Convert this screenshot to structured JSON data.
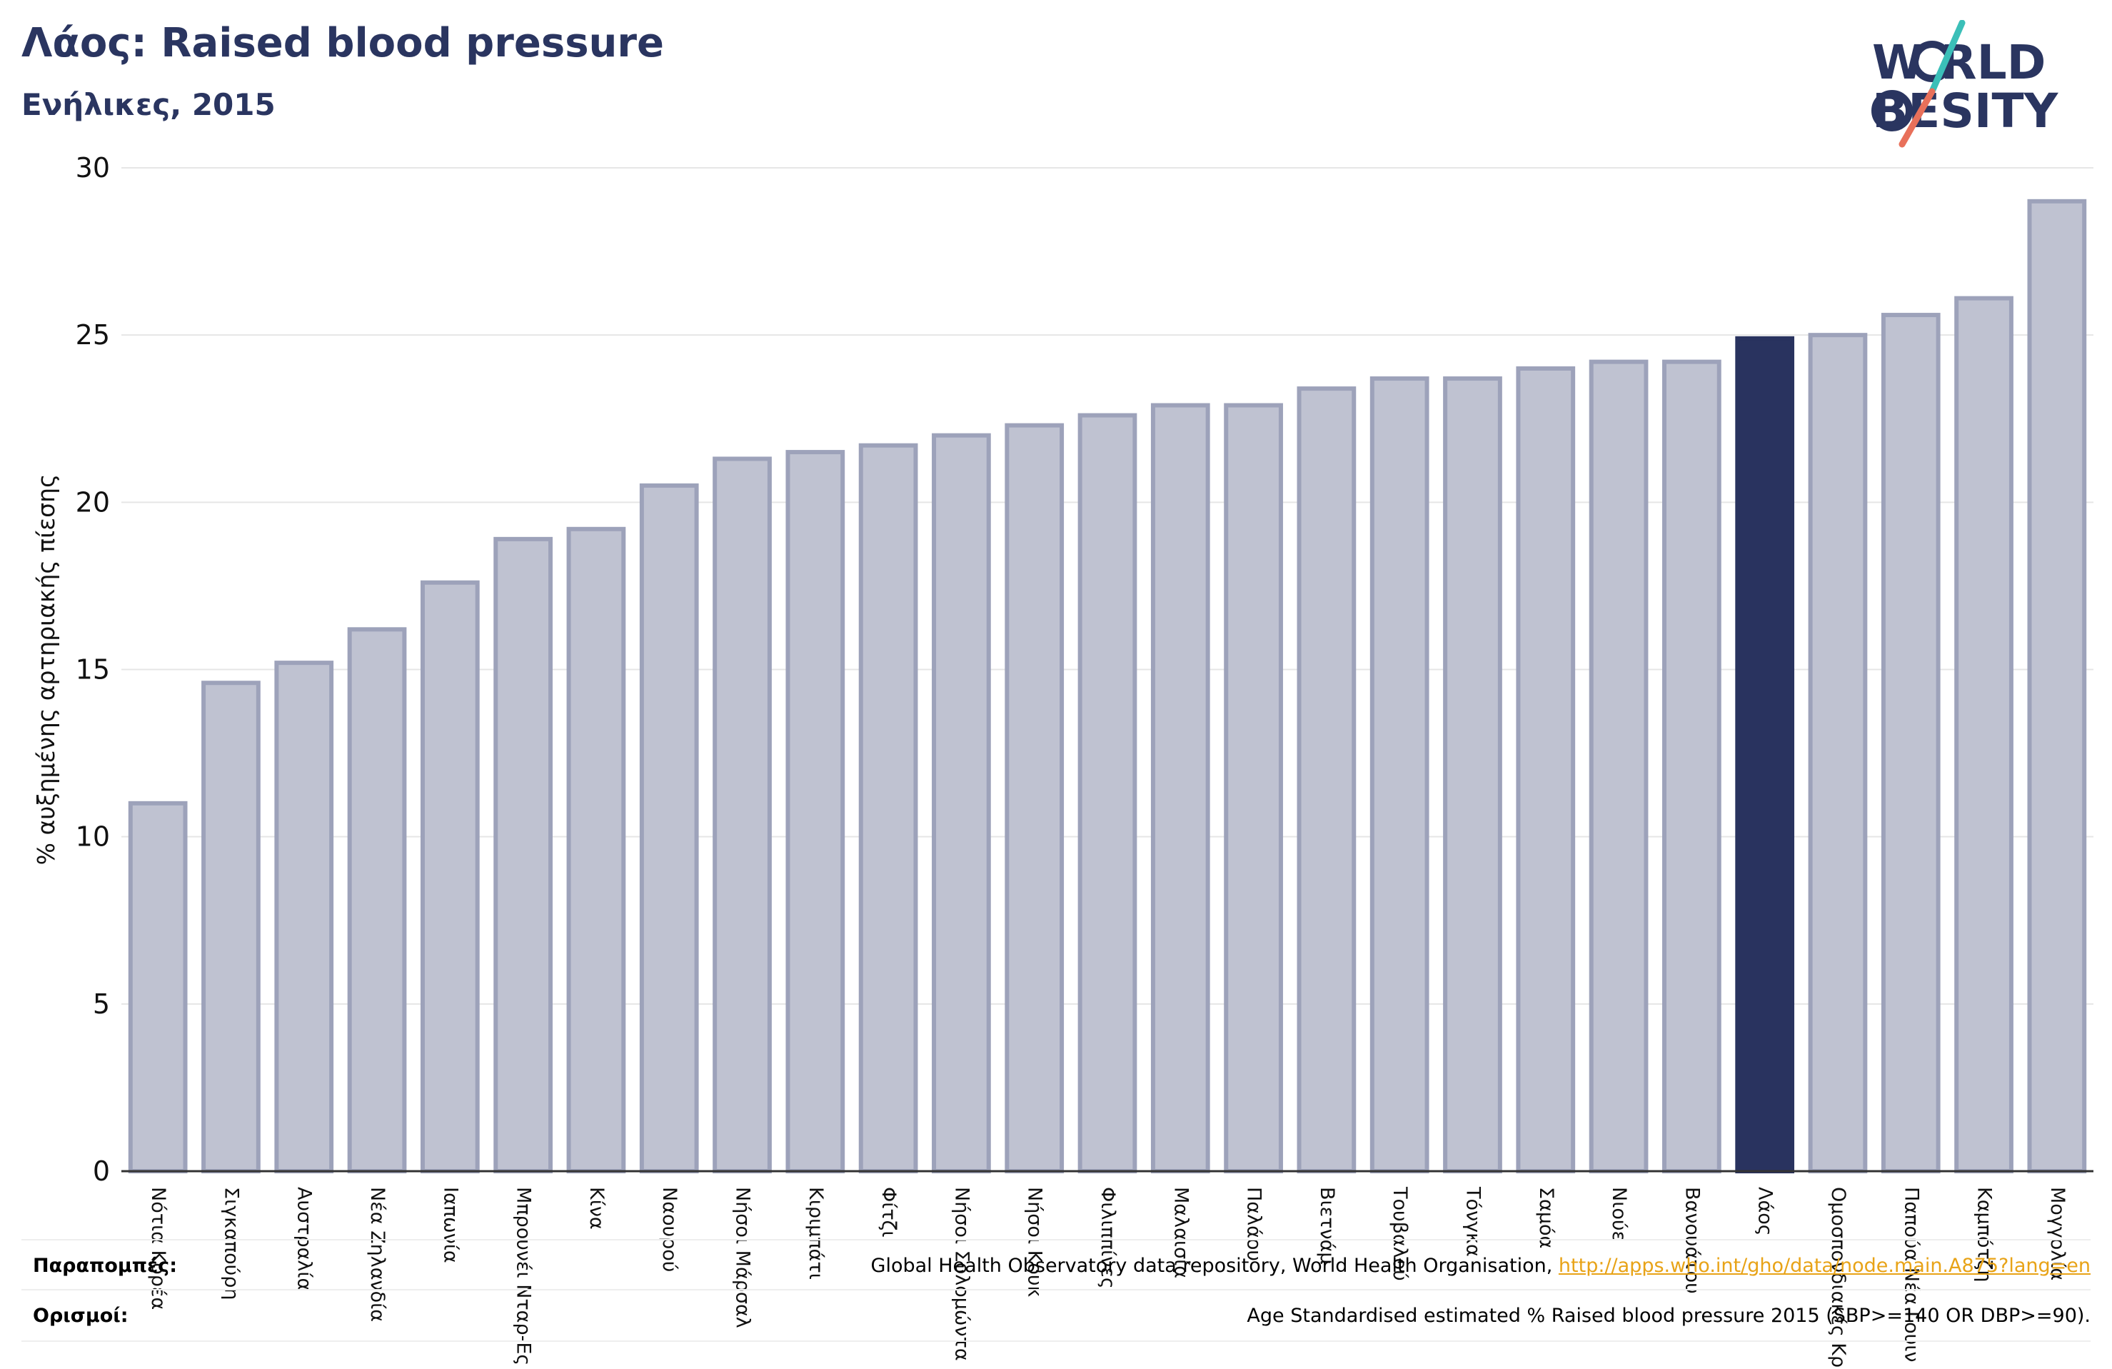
{
  "header": {
    "title": "Λάος: Raised blood pressure",
    "subtitle": "Ενήλικες, 2015"
  },
  "logo": {
    "line1": "W RLD",
    "line2": "BESITY",
    "letters": "WORLD OBESITY"
  },
  "colors": {
    "bar_fill": "#bfc2d1",
    "bar_stroke": "#9da2ba",
    "highlight": "#29335f",
    "axis_text": "#111111",
    "grid": "#e6e6e6",
    "logo_teal": "#3bbfb8",
    "logo_coral": "#e8705a",
    "link": "#e8a317"
  },
  "footer": {
    "references_label": "Παραπομπές:",
    "references_text": "Global Health Observatory data repository, World Health Organisation, ",
    "references_link": "http://apps.who.int/gho/data/node.main.A875?lang=en",
    "definitions_label": "Ορισμοί:",
    "definitions_text": "Age Standardised estimated % Raised blood pressure 2015 (SBP>=140 OR DBP>=90)."
  },
  "chart_data": {
    "type": "bar",
    "ylabel": "% αυξημένης αρτηριακής πίεσης",
    "ylim": [
      0,
      30
    ],
    "yticks": [
      0,
      5,
      10,
      15,
      20,
      25,
      30
    ],
    "grid": true,
    "highlight_category": "Λάος",
    "categories": [
      "Νότια Κορέα",
      "Σιγκαπούρη",
      "Αυστραλία",
      "Νέα Ζηλανδία",
      "Ιαπωνία",
      "Μπρουνέι Νταρ-Ες",
      "Κίνα",
      "Ναουρού",
      "Νήσοι Μάρσαλ",
      "Κιριμπάτι",
      "Φίτζι",
      "Νήσοι Σολομώντα",
      "Νήσοι Κουκ",
      "Φιλιππίνες",
      "Μαλαισία",
      "Παλάου",
      "Βιετνάμ",
      "Τουβαλού",
      "Τόνγκα",
      "Σαμόα",
      "Νιούε",
      "Βανουάτου",
      "Λάος",
      "Ομοσπονδιακές Κρ",
      "Παπούα Νέα Γουιν",
      "Καμπότζη",
      "Μογγολία"
    ],
    "values": [
      11.0,
      14.6,
      15.2,
      16.2,
      17.6,
      18.9,
      19.2,
      20.5,
      21.3,
      21.5,
      21.7,
      22.0,
      22.3,
      22.6,
      22.9,
      22.9,
      23.4,
      23.7,
      23.7,
      24.0,
      24.2,
      24.2,
      24.9,
      25.0,
      25.6,
      26.1,
      29.0
    ]
  }
}
